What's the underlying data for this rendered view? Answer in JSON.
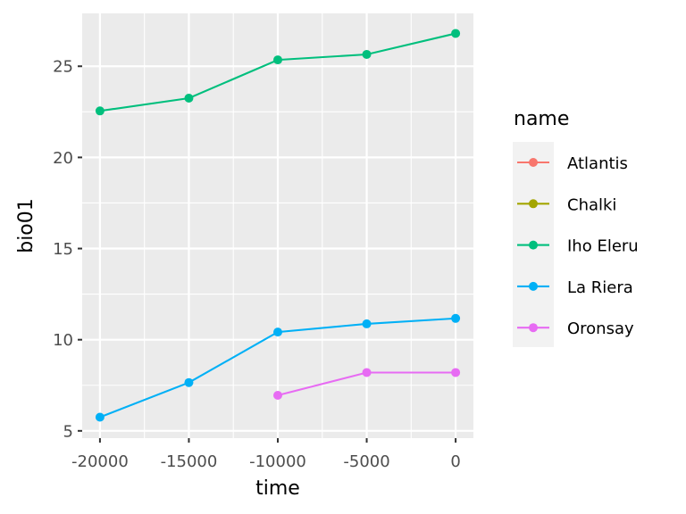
{
  "chart_data": {
    "type": "line",
    "title": "",
    "xlabel": "time",
    "ylabel": "bio01",
    "xlim": [
      -21000,
      1000
    ],
    "ylim": [
      4.6,
      27.9
    ],
    "x_ticks": [
      -20000,
      -15000,
      -10000,
      -5000,
      0
    ],
    "x_tick_labels": [
      "-20000",
      "-15000",
      "-10000",
      "-5000",
      "0"
    ],
    "y_ticks": [
      5,
      10,
      15,
      20,
      25
    ],
    "y_tick_labels": [
      "5",
      "10",
      "15",
      "20",
      "25"
    ],
    "grid": true,
    "legend": {
      "title": "name",
      "placement": "right"
    },
    "series": [
      {
        "name": "Atlantis",
        "color": "#F8766D",
        "points": []
      },
      {
        "name": "Chalki",
        "color": "#A3A500",
        "points": []
      },
      {
        "name": "Iho Eleru",
        "color": "#00BF7D",
        "points": [
          [
            -20000,
            22.55
          ],
          [
            -15000,
            23.25
          ],
          [
            -10000,
            25.35
          ],
          [
            -5000,
            25.65
          ],
          [
            0,
            26.8
          ]
        ]
      },
      {
        "name": "La Riera",
        "color": "#00B0F6",
        "points": [
          [
            -20000,
            5.75
          ],
          [
            -15000,
            7.65
          ],
          [
            -10000,
            10.42
          ],
          [
            -5000,
            10.87
          ],
          [
            0,
            11.17
          ]
        ]
      },
      {
        "name": "Oronsay",
        "color": "#E76BF3",
        "points": [
          [
            -10000,
            6.95
          ],
          [
            -5000,
            8.2
          ],
          [
            0,
            8.2
          ]
        ]
      }
    ]
  }
}
